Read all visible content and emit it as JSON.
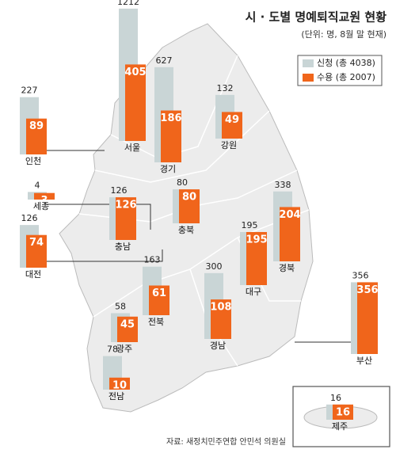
{
  "chart_data": {
    "type": "bar",
    "title": "시 · 도별 명예퇴직교원 현황",
    "subtitle": "(단위: 명, 8월 말 현재)",
    "source": "자료: 새정치민주연합 안민석 의원실",
    "categories": [
      "서울",
      "경기",
      "인천",
      "강원",
      "세종",
      "충북",
      "충남",
      "대전",
      "대구",
      "경북",
      "전북",
      "경남",
      "부산",
      "광주",
      "전남",
      "제주"
    ],
    "series": [
      {
        "name": "신청 (총 4038)",
        "color": "#c9d5d6",
        "values": [
          1212,
          627,
          227,
          132,
          4,
          80,
          126,
          126,
          195,
          338,
          163,
          300,
          356,
          58,
          78,
          16
        ]
      },
      {
        "name": "수용 (총 2007)",
        "color": "#f0651b",
        "values": [
          405,
          186,
          89,
          49,
          3,
          80,
          126,
          74,
          195,
          204,
          61,
          108,
          356,
          45,
          10,
          16
        ]
      }
    ]
  }
}
